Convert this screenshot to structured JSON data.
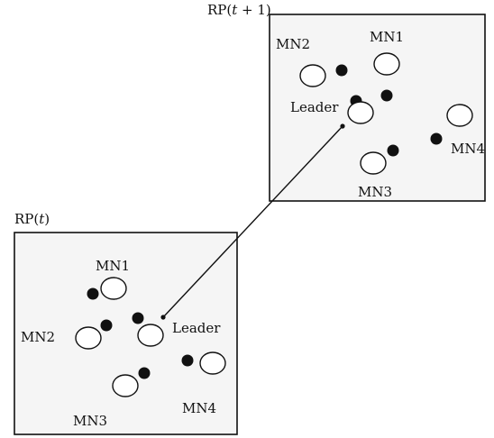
{
  "diagram": {
    "top_panel": {
      "title_prefix": "RP(",
      "title_var": "t",
      "title_suffix": " + 1)",
      "nodes": {
        "mn1": "MN1",
        "mn2": "MN2",
        "mn3": "MN3",
        "mn4": "MN4",
        "leader": "Leader"
      }
    },
    "bottom_panel": {
      "title_prefix": "RP(",
      "title_var": "t",
      "title_suffix": ")",
      "nodes": {
        "mn1": "MN1",
        "mn2": "MN2",
        "mn3": "MN3",
        "mn4": "MN4",
        "leader": "Leader"
      }
    }
  }
}
